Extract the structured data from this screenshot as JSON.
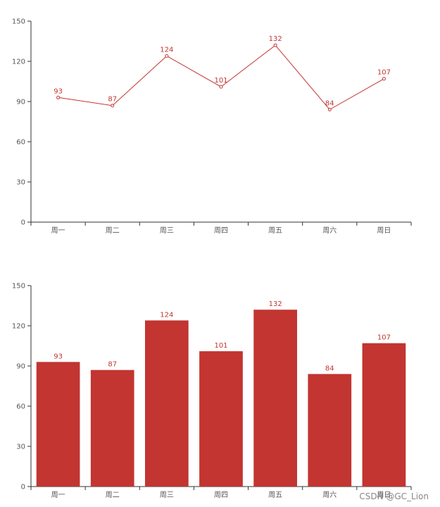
{
  "chart_data": [
    {
      "type": "line",
      "categories": [
        "周一",
        "周二",
        "周三",
        "周四",
        "周五",
        "周六",
        "周日"
      ],
      "series": [
        {
          "values": [
            93,
            87,
            124,
            101,
            132,
            84,
            107
          ]
        }
      ],
      "yticks": [
        0,
        30,
        60,
        90,
        120,
        150
      ],
      "ylim": [
        0,
        150
      ],
      "grid": false,
      "color": "#c23531"
    },
    {
      "type": "bar",
      "categories": [
        "周一",
        "周二",
        "周三",
        "周四",
        "周五",
        "周六",
        "周日"
      ],
      "series": [
        {
          "values": [
            93,
            87,
            124,
            101,
            132,
            84,
            107
          ]
        }
      ],
      "yticks": [
        0,
        30,
        60,
        90,
        120,
        150
      ],
      "ylim": [
        0,
        150
      ],
      "grid": false,
      "color": "#c23531"
    }
  ],
  "watermark": "CSDN @GC_Lion"
}
